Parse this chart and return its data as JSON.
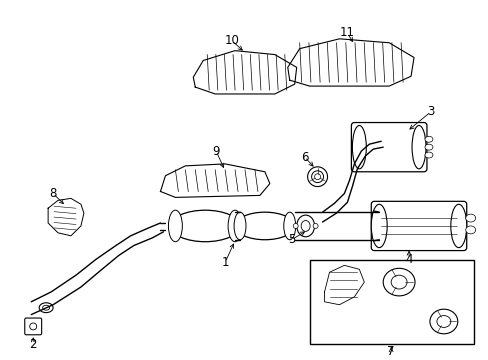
{
  "bg_color": "#ffffff",
  "line_color": "#000000",
  "fig_width": 4.89,
  "fig_height": 3.6,
  "dpi": 100,
  "lw_main": 1.0,
  "lw_thin": 0.6,
  "fs_label": 8.5
}
